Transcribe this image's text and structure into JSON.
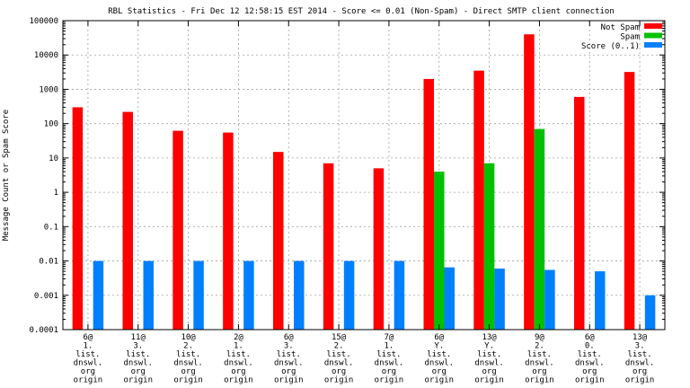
{
  "chart_data": {
    "type": "bar",
    "title": "RBL Statistics - Fri Dec 12 12:58:15 EST 2014 - Score <= 0.01 (Non-Spam) - Direct SMTP client connection",
    "xlabel": "",
    "ylabel": "Message Count or Spam Score",
    "yscale": "log",
    "ylim": [
      0.0001,
      100000
    ],
    "yticks": [
      0.0001,
      0.001,
      0.01,
      0.1,
      1,
      10,
      100,
      1000,
      10000,
      100000
    ],
    "ytick_labels": [
      "0.0001",
      "0.001",
      "0.01",
      "0.1",
      "1",
      "10",
      "100",
      "1000",
      "10000",
      "100000"
    ],
    "grid": true,
    "legend_position": "top-right",
    "categories": [
      [
        "6@",
        "1.",
        "list.",
        "dnswl.",
        "org",
        "origin"
      ],
      [
        "11@",
        "3.",
        "list.",
        "dnswl.",
        "org",
        "origin"
      ],
      [
        "10@",
        "2.",
        "list.",
        "dnswl.",
        "org",
        "origin"
      ],
      [
        "2@",
        "1.",
        "list.",
        "dnswl.",
        "org",
        "origin"
      ],
      [
        "6@",
        "3.",
        "list.",
        "dnswl.",
        "org",
        "origin"
      ],
      [
        "15@",
        "2.",
        "list.",
        "dnswl.",
        "org",
        "origin"
      ],
      [
        "7@",
        "1.",
        "list.",
        "dnswl.",
        "org",
        "origin"
      ],
      [
        "6@",
        "Y.",
        "list.",
        "dnswl.",
        "org",
        "origin"
      ],
      [
        "13@",
        "Y.",
        "list.",
        "dnswl.",
        "org",
        "origin"
      ],
      [
        "9@",
        "2.",
        "list.",
        "dnswl.",
        "org",
        "origin"
      ],
      [
        "6@",
        "0.",
        "list.",
        "dnswl.",
        "org",
        "origin"
      ],
      [
        "13@",
        "3.",
        "list.",
        "dnswl.",
        "org",
        "origin"
      ]
    ],
    "series": [
      {
        "name": "Not Spam",
        "color": "#ff0000",
        "values": [
          300,
          220,
          62,
          55,
          15,
          7,
          5,
          2000,
          3500,
          40000,
          600,
          3200
        ]
      },
      {
        "name": "Spam",
        "color": "#00c000",
        "values": [
          null,
          null,
          null,
          null,
          null,
          null,
          null,
          4,
          7,
          70,
          null,
          null
        ]
      },
      {
        "name": "Score (0..1)",
        "color": "#0080ff",
        "values": [
          0.01,
          0.01,
          0.01,
          0.01,
          0.01,
          0.01,
          0.01,
          0.0065,
          0.006,
          0.0055,
          0.005,
          0.001
        ]
      }
    ]
  }
}
